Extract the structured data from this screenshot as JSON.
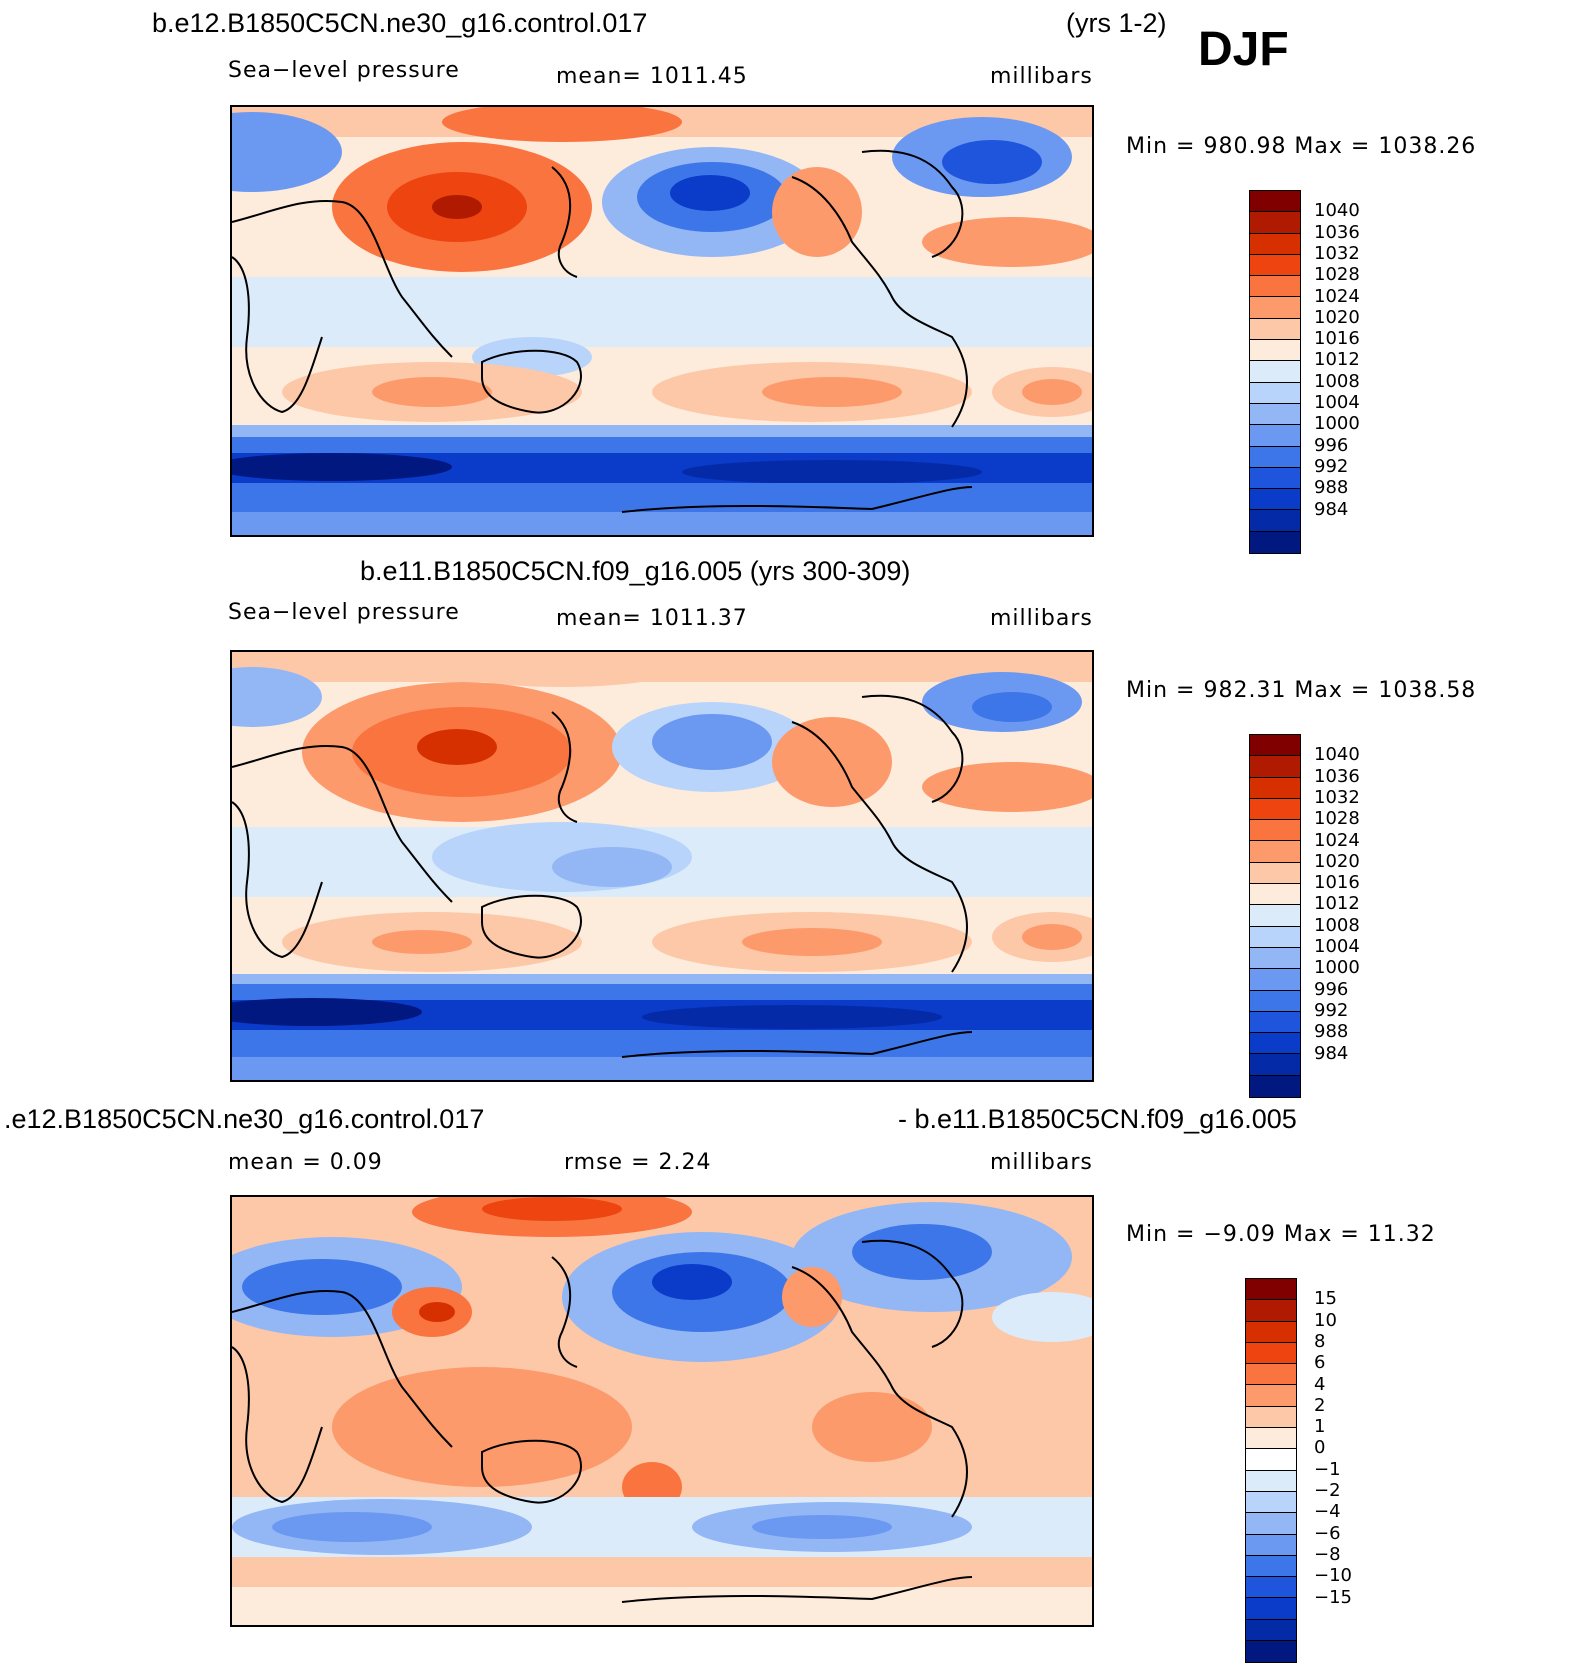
{
  "header": {
    "case_name": "b.e12.B1850C5CN.ne30_g16.control.017",
    "years": "(yrs 1-2)",
    "season": "DJF"
  },
  "panels": [
    {
      "id": "panel-1",
      "title": "",
      "variable": "Sea−level pressure",
      "mean": "mean=  1011.45",
      "units": "millibars",
      "minmax": "Min  =  980.98  Max  =  1038.26"
    },
    {
      "id": "panel-2",
      "title": "b.e11.B1850C5CN.f09_g16.005 (yrs 300-309)",
      "variable": "Sea−level pressure",
      "mean": "mean=  1011.37",
      "units": "millibars",
      "minmax": "Min  =  982.31  Max  =  1038.58"
    },
    {
      "id": "panel-3",
      "title_left": ".e12.B1850C5CN.ne30_g16.control.017",
      "title_right": "- b.e11.B1850C5CN.f09_g16.005",
      "mean": "mean  =      0.09",
      "rmse": "rmse  =      2.24",
      "units": "millibars",
      "minmax": "Min  =    −9.09  Max  =    11.32"
    }
  ],
  "colorbars": {
    "slp": {
      "colors": [
        "#800000",
        "#b01a00",
        "#d73000",
        "#ee4410",
        "#fa7440",
        "#fc9a6c",
        "#fdc8a8",
        "#fdecdc",
        "#dcebfa",
        "#b8d4fa",
        "#93b6f5",
        "#6b98f0",
        "#3d76e8",
        "#1f55dd",
        "#0a3bc9",
        "#052aa8",
        "#001880"
      ],
      "labels": [
        "1040",
        "1036",
        "1032",
        "1028",
        "1024",
        "1020",
        "1016",
        "1012",
        "1008",
        "1004",
        "1000",
        "996",
        "992",
        "988",
        "984"
      ]
    },
    "diff": {
      "colors": [
        "#800000",
        "#b01a00",
        "#d73000",
        "#ee4410",
        "#fa7440",
        "#fc9a6c",
        "#fdc8a8",
        "#fdecdc",
        "#ffffff",
        "#dcebfa",
        "#b8d4fa",
        "#93b6f5",
        "#6b98f0",
        "#3d76e8",
        "#1f55dd",
        "#0a3bc9",
        "#052aa8",
        "#001880"
      ],
      "labels": [
        "15",
        "10",
        "8",
        "6",
        "4",
        "2",
        "1",
        "0",
        "−1",
        "−2",
        "−4",
        "−6",
        "−8",
        "−10",
        "−15"
      ]
    }
  }
}
